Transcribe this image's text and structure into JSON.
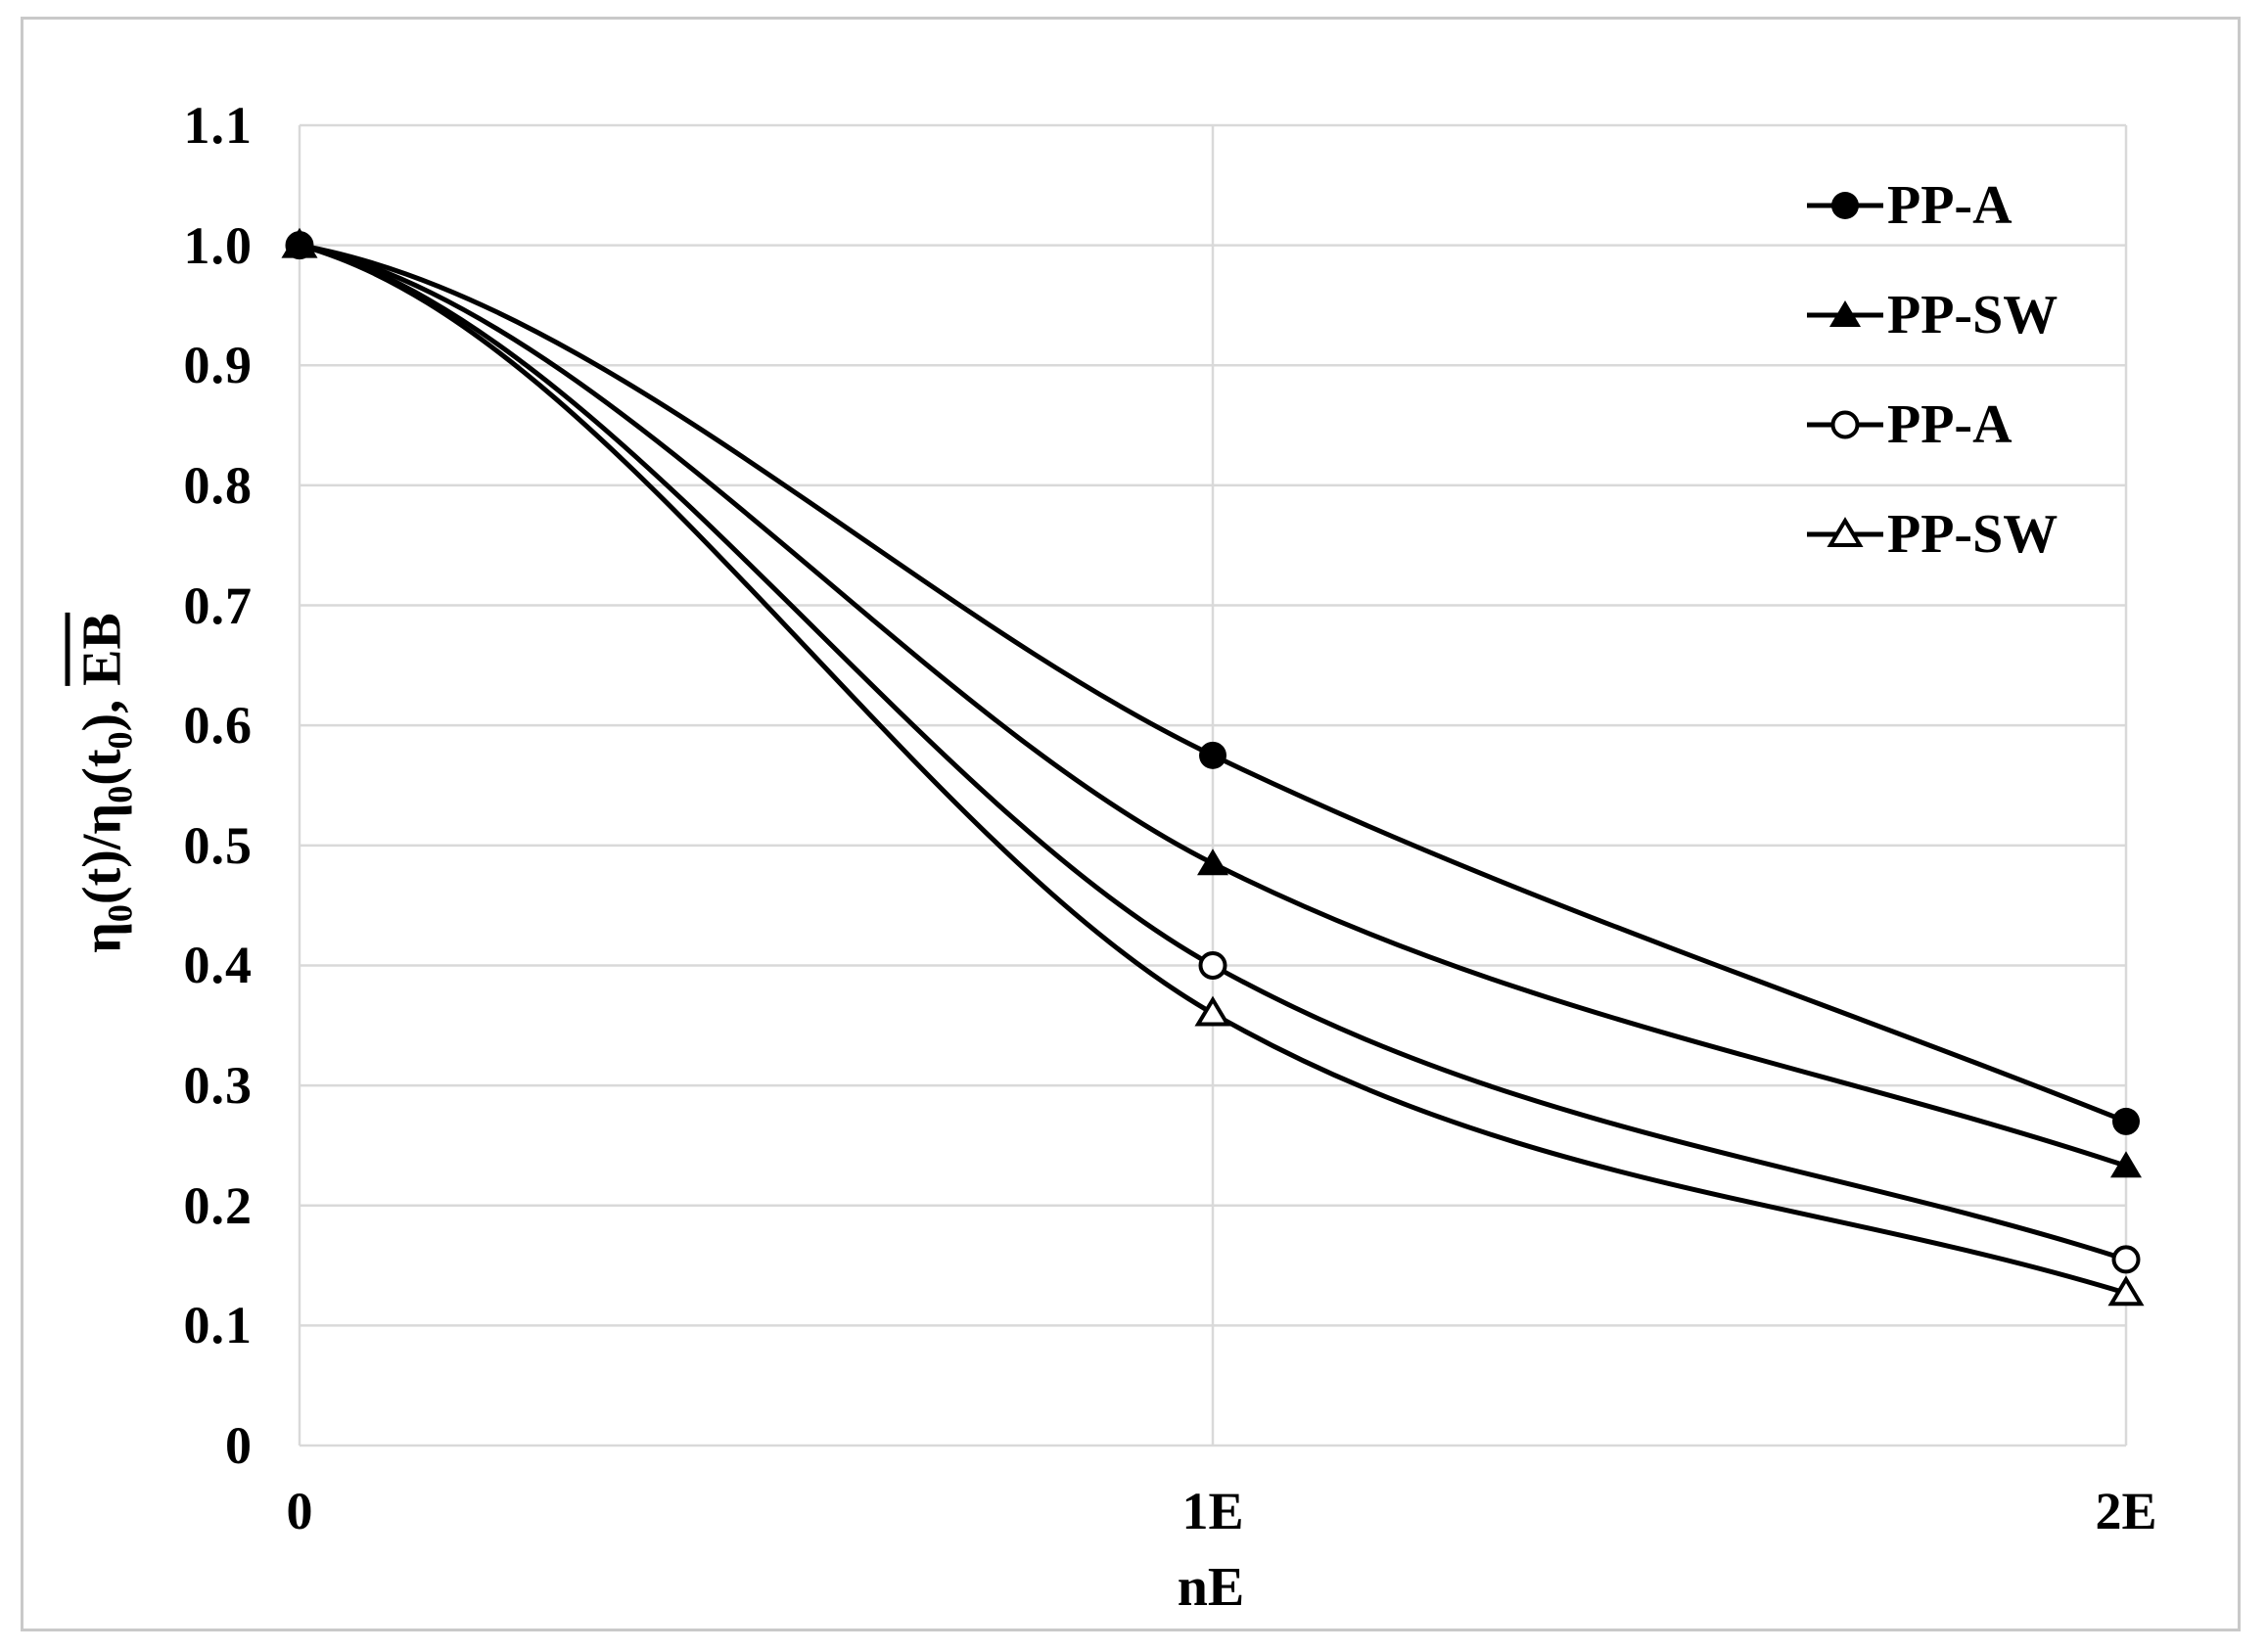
{
  "chart_data": {
    "type": "line",
    "categories": [
      "0",
      "1E",
      "2E"
    ],
    "series": [
      {
        "name": "PP-A",
        "marker": "filled-circle",
        "values": [
          1.0,
          0.575,
          0.27
        ]
      },
      {
        "name": "PP-SW",
        "marker": "filled-triangle",
        "values": [
          1.0,
          0.485,
          0.233
        ]
      },
      {
        "name": "PP-A",
        "marker": "open-circle",
        "values": [
          1.0,
          0.4,
          0.155
        ]
      },
      {
        "name": "PP-SW",
        "marker": "open-triangle",
        "values": [
          1.0,
          0.36,
          0.127
        ]
      }
    ],
    "xlabel": "nE",
    "ylabel": "η₀(t)/η₀(t₀), EB",
    "ylabel_overline_segment": "EB",
    "ylabel_parts": [
      {
        "text": "η",
        "style": "normal"
      },
      {
        "text": "0",
        "style": "sub"
      },
      {
        "text": "(t)/η",
        "style": "normal"
      },
      {
        "text": "0",
        "style": "sub"
      },
      {
        "text": "(t",
        "style": "normal"
      },
      {
        "text": "0",
        "style": "sub"
      },
      {
        "text": "), ",
        "style": "normal"
      },
      {
        "text": "EB",
        "style": "overline"
      }
    ],
    "ylim": [
      0,
      1.1
    ],
    "ytick_step": 0.1,
    "y_tick_labels": [
      "0",
      "0.1",
      "0.2",
      "0.3",
      "0.4",
      "0.5",
      "0.6",
      "0.7",
      "0.8",
      "0.9",
      "1.0",
      "1.1"
    ],
    "x_tick_labels": [
      "0",
      "1E",
      "2E"
    ],
    "grid": true,
    "legend_position": "upper-right",
    "line_color": "#000000",
    "grid_color": "#d9d9d9",
    "border_color": "#c9c9c9",
    "background": "#ffffff"
  },
  "legend": {
    "items": [
      {
        "label": "PP-A",
        "marker": "filled-circle"
      },
      {
        "label": "PP-SW",
        "marker": "filled-triangle"
      },
      {
        "label": "PP-A",
        "marker": "open-circle"
      },
      {
        "label": "PP-SW",
        "marker": "open-triangle"
      }
    ]
  }
}
